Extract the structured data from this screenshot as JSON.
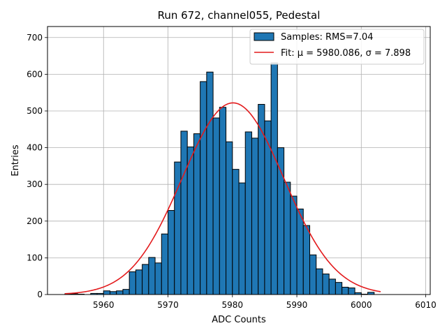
{
  "chart_data": {
    "type": "bar",
    "title": "Run 672, channel055, Pedestal",
    "xlabel": "ADC Counts",
    "ylabel": "Entries",
    "xlim": [
      5951.3,
      6010.7
    ],
    "ylim": [
      0,
      730
    ],
    "xticks": [
      5960,
      5970,
      5980,
      5990,
      6000,
      6010
    ],
    "yticks": [
      0,
      100,
      200,
      300,
      400,
      500,
      600,
      700
    ],
    "grid": true,
    "legend_position": "top-right",
    "bin_width": 1,
    "bin_start": 5954,
    "bin_values": [
      2,
      2,
      1,
      0,
      3,
      3,
      10,
      8,
      10,
      14,
      62,
      67,
      82,
      101,
      86,
      165,
      229,
      361,
      445,
      402,
      438,
      580,
      606,
      481,
      510,
      416,
      341,
      304,
      443,
      426,
      518,
      473,
      631,
      400,
      306,
      268,
      233,
      188,
      108,
      70,
      56,
      42,
      33,
      20,
      18,
      5,
      1,
      6
    ],
    "series": [
      {
        "name": "Samples: RMS=7.04",
        "kind": "histogram",
        "color": "#1f77b4"
      },
      {
        "name": "Fit: μ = 5980.086, σ = 7.898",
        "kind": "gaussian-fit",
        "color": "#e31a1c",
        "mu": 5980.086,
        "sigma": 7.898,
        "amplitude": 522,
        "x_range": [
          5954,
          6003
        ]
      }
    ]
  }
}
